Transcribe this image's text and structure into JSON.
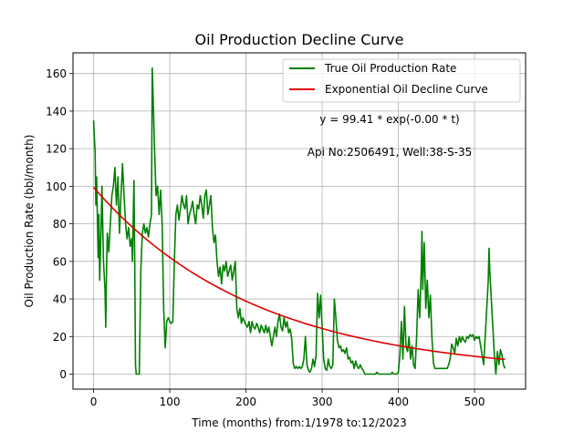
{
  "colors": {
    "true_rate": "#008000",
    "fit_curve": "#e00000",
    "grid": "#b0b0b0",
    "axes": "#000000",
    "background": "#ffffff"
  },
  "chart_data": {
    "type": "line",
    "title": "Oil Production Decline Curve",
    "xlabel": "Time (months) from:1/1978 to:12/2023",
    "ylabel": "Oil Production Rate (bbl/month)",
    "xlim": [
      -27,
      567
    ],
    "ylim": [
      -8,
      171
    ],
    "grid": true,
    "legend_position": "top-right",
    "x_ticks": [
      0,
      100,
      200,
      300,
      400,
      500
    ],
    "y_ticks": [
      0,
      20,
      40,
      60,
      80,
      100,
      120,
      140,
      160
    ],
    "annotations": [
      "y = 99.41 * exp(-0.00 * t)",
      "Api No:2506491, Well:38-S-35"
    ],
    "series": [
      {
        "name": "True Oil Production Rate",
        "color": "#008000",
        "points": [
          [
            0,
            135
          ],
          [
            2,
            118
          ],
          [
            3,
            90
          ],
          [
            4,
            105
          ],
          [
            6,
            62
          ],
          [
            7,
            85
          ],
          [
            8,
            50
          ],
          [
            10,
            80
          ],
          [
            11,
            100
          ],
          [
            13,
            60
          ],
          [
            15,
            45
          ],
          [
            16,
            25
          ],
          [
            17,
            55
          ],
          [
            18,
            75
          ],
          [
            20,
            65
          ],
          [
            22,
            80
          ],
          [
            24,
            95
          ],
          [
            26,
            100
          ],
          [
            28,
            110
          ],
          [
            30,
            90
          ],
          [
            32,
            105
          ],
          [
            34,
            75
          ],
          [
            36,
            95
          ],
          [
            38,
            112
          ],
          [
            40,
            95
          ],
          [
            42,
            80
          ],
          [
            44,
            72
          ],
          [
            46,
            78
          ],
          [
            48,
            68
          ],
          [
            50,
            72
          ],
          [
            51,
            60
          ],
          [
            53,
            103
          ],
          [
            54,
            60
          ],
          [
            55,
            5
          ],
          [
            56,
            0
          ],
          [
            58,
            0
          ],
          [
            60,
            0
          ],
          [
            62,
            55
          ],
          [
            64,
            75
          ],
          [
            66,
            80
          ],
          [
            68,
            75
          ],
          [
            70,
            78
          ],
          [
            72,
            73
          ],
          [
            74,
            80
          ],
          [
            76,
            85
          ],
          [
            77,
            163
          ],
          [
            78,
            150
          ],
          [
            80,
            120
          ],
          [
            82,
            95
          ],
          [
            84,
            100
          ],
          [
            86,
            85
          ],
          [
            88,
            98
          ],
          [
            90,
            80
          ],
          [
            92,
            35
          ],
          [
            94,
            14
          ],
          [
            96,
            28
          ],
          [
            98,
            30
          ],
          [
            100,
            28
          ],
          [
            102,
            27
          ],
          [
            104,
            28
          ],
          [
            106,
            60
          ],
          [
            108,
            85
          ],
          [
            110,
            90
          ],
          [
            112,
            82
          ],
          [
            114,
            88
          ],
          [
            116,
            95
          ],
          [
            118,
            90
          ],
          [
            120,
            88
          ],
          [
            122,
            95
          ],
          [
            124,
            80
          ],
          [
            126,
            85
          ],
          [
            128,
            88
          ],
          [
            130,
            92
          ],
          [
            132,
            85
          ],
          [
            134,
            80
          ],
          [
            136,
            90
          ],
          [
            138,
            88
          ],
          [
            140,
            95
          ],
          [
            142,
            90
          ],
          [
            144,
            83
          ],
          [
            146,
            95
          ],
          [
            148,
            98
          ],
          [
            150,
            85
          ],
          [
            152,
            90
          ],
          [
            154,
            95
          ],
          [
            156,
            78
          ],
          [
            158,
            70
          ],
          [
            160,
            74
          ],
          [
            162,
            60
          ],
          [
            164,
            52
          ],
          [
            166,
            57
          ],
          [
            168,
            48
          ],
          [
            170,
            58
          ],
          [
            172,
            55
          ],
          [
            174,
            60
          ],
          [
            176,
            52
          ],
          [
            178,
            55
          ],
          [
            180,
            58
          ],
          [
            182,
            50
          ],
          [
            184,
            55
          ],
          [
            186,
            60
          ],
          [
            188,
            35
          ],
          [
            190,
            30
          ],
          [
            192,
            35
          ],
          [
            194,
            27
          ],
          [
            196,
            30
          ],
          [
            198,
            28
          ],
          [
            200,
            26
          ],
          [
            202,
            25
          ],
          [
            204,
            28
          ],
          [
            206,
            22
          ],
          [
            208,
            28
          ],
          [
            210,
            25
          ],
          [
            212,
            24
          ],
          [
            214,
            27
          ],
          [
            216,
            25
          ],
          [
            218,
            22
          ],
          [
            220,
            26
          ],
          [
            222,
            24
          ],
          [
            224,
            22
          ],
          [
            226,
            26
          ],
          [
            228,
            22
          ],
          [
            230,
            25
          ],
          [
            232,
            20
          ],
          [
            234,
            15
          ],
          [
            236,
            20
          ],
          [
            238,
            25
          ],
          [
            240,
            20
          ],
          [
            242,
            28
          ],
          [
            244,
            32
          ],
          [
            246,
            25
          ],
          [
            248,
            23
          ],
          [
            250,
            30
          ],
          [
            252,
            25
          ],
          [
            254,
            28
          ],
          [
            256,
            22
          ],
          [
            258,
            24
          ],
          [
            260,
            19
          ],
          [
            262,
            6
          ],
          [
            264,
            3
          ],
          [
            266,
            4
          ],
          [
            268,
            3
          ],
          [
            270,
            4
          ],
          [
            272,
            3
          ],
          [
            274,
            4
          ],
          [
            276,
            8
          ],
          [
            278,
            20
          ],
          [
            280,
            5
          ],
          [
            282,
            2
          ],
          [
            284,
            1
          ],
          [
            286,
            3
          ],
          [
            288,
            8
          ],
          [
            290,
            4
          ],
          [
            292,
            10
          ],
          [
            294,
            43
          ],
          [
            296,
            30
          ],
          [
            298,
            42
          ],
          [
            300,
            25
          ],
          [
            302,
            8
          ],
          [
            304,
            3
          ],
          [
            306,
            2
          ],
          [
            308,
            8
          ],
          [
            310,
            4
          ],
          [
            312,
            3
          ],
          [
            314,
            5
          ],
          [
            316,
            40
          ],
          [
            318,
            30
          ],
          [
            320,
            18
          ],
          [
            322,
            14
          ],
          [
            324,
            15
          ],
          [
            326,
            12
          ],
          [
            328,
            13
          ],
          [
            330,
            11
          ],
          [
            332,
            14
          ],
          [
            334,
            8
          ],
          [
            336,
            9
          ],
          [
            338,
            6
          ],
          [
            340,
            7
          ],
          [
            342,
            3
          ],
          [
            344,
            7
          ],
          [
            346,
            4
          ],
          [
            348,
            3
          ],
          [
            350,
            5
          ],
          [
            352,
            3
          ],
          [
            354,
            2
          ],
          [
            356,
            0
          ],
          [
            358,
            0
          ],
          [
            360,
            0
          ],
          [
            362,
            0
          ],
          [
            364,
            0
          ],
          [
            366,
            0
          ],
          [
            368,
            0
          ],
          [
            370,
            0
          ],
          [
            372,
            1
          ],
          [
            374,
            0
          ],
          [
            376,
            0
          ],
          [
            378,
            0
          ],
          [
            380,
            0
          ],
          [
            382,
            0
          ],
          [
            384,
            0
          ],
          [
            386,
            0
          ],
          [
            388,
            0
          ],
          [
            390,
            0
          ],
          [
            392,
            1
          ],
          [
            394,
            0
          ],
          [
            396,
            0
          ],
          [
            398,
            0
          ],
          [
            400,
            1
          ],
          [
            402,
            10
          ],
          [
            404,
            28
          ],
          [
            405,
            18
          ],
          [
            406,
            8
          ],
          [
            408,
            36
          ],
          [
            410,
            15
          ],
          [
            412,
            12
          ],
          [
            414,
            20
          ],
          [
            416,
            8
          ],
          [
            418,
            15
          ],
          [
            420,
            5
          ],
          [
            422,
            3
          ],
          [
            424,
            20
          ],
          [
            426,
            45
          ],
          [
            428,
            30
          ],
          [
            430,
            55
          ],
          [
            431,
            76
          ],
          [
            432,
            45
          ],
          [
            434,
            70
          ],
          [
            436,
            35
          ],
          [
            438,
            50
          ],
          [
            440,
            30
          ],
          [
            442,
            42
          ],
          [
            444,
            20
          ],
          [
            446,
            6
          ],
          [
            448,
            3
          ],
          [
            450,
            3
          ],
          [
            452,
            3
          ],
          [
            454,
            3
          ],
          [
            456,
            3
          ],
          [
            458,
            3
          ],
          [
            460,
            3
          ],
          [
            462,
            3
          ],
          [
            464,
            3
          ],
          [
            466,
            5
          ],
          [
            468,
            8
          ],
          [
            470,
            16
          ],
          [
            472,
            14
          ],
          [
            474,
            11
          ],
          [
            476,
            19
          ],
          [
            478,
            15
          ],
          [
            480,
            20
          ],
          [
            482,
            17
          ],
          [
            484,
            20
          ],
          [
            486,
            18
          ],
          [
            488,
            17
          ],
          [
            490,
            20
          ],
          [
            492,
            19
          ],
          [
            494,
            21
          ],
          [
            496,
            20
          ],
          [
            498,
            21
          ],
          [
            500,
            18
          ],
          [
            502,
            20
          ],
          [
            504,
            19
          ],
          [
            506,
            20
          ],
          [
            508,
            15
          ],
          [
            510,
            10
          ],
          [
            512,
            5
          ],
          [
            514,
            20
          ],
          [
            516,
            35
          ],
          [
            518,
            50
          ],
          [
            519,
            67
          ],
          [
            520,
            55
          ],
          [
            522,
            40
          ],
          [
            524,
            25
          ],
          [
            526,
            10
          ],
          [
            528,
            0
          ],
          [
            530,
            12
          ],
          [
            532,
            5
          ],
          [
            534,
            13
          ],
          [
            536,
            10
          ],
          [
            538,
            5
          ],
          [
            540,
            3
          ]
        ]
      },
      {
        "name": "Exponential Oil Decline Curve",
        "color": "#e00000",
        "function": {
          "a": 99.41,
          "b": 0.0047
        },
        "x_range": [
          0,
          540
        ]
      }
    ]
  }
}
